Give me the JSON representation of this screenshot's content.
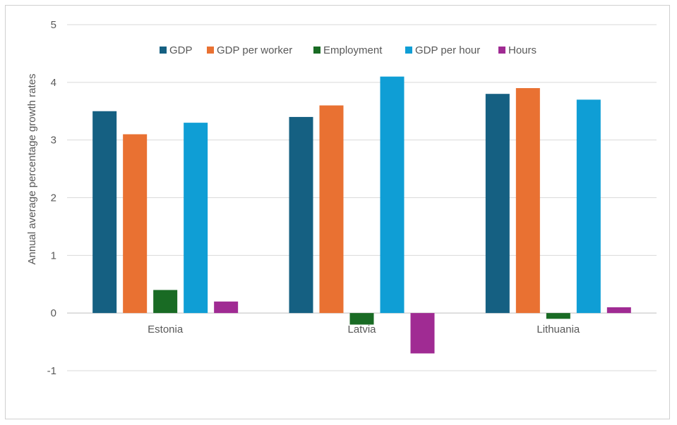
{
  "chart_data": {
    "type": "bar",
    "title": "",
    "xlabel": "",
    "ylabel": "Annual average percentage growth rates",
    "ylim": [
      -1,
      5
    ],
    "yticks": [
      -1,
      0,
      1,
      2,
      3,
      4,
      5
    ],
    "grid": true,
    "legend_position": "top",
    "categories": [
      "Estonia",
      "Latvia",
      "Lithuania"
    ],
    "series": [
      {
        "name": "GDP",
        "color": "#156082",
        "values": [
          3.5,
          3.4,
          3.8
        ]
      },
      {
        "name": "GDP per worker",
        "color": "#E97132",
        "values": [
          3.1,
          3.6,
          3.9
        ]
      },
      {
        "name": "Employment",
        "color": "#196B24",
        "values": [
          0.4,
          -0.2,
          -0.1
        ]
      },
      {
        "name": "GDP per hour",
        "color": "#0F9ED5",
        "values": [
          3.3,
          4.1,
          3.7
        ]
      },
      {
        "name": "Hours",
        "color": "#A02B93",
        "values": [
          0.2,
          -0.7,
          0.1
        ]
      }
    ]
  }
}
